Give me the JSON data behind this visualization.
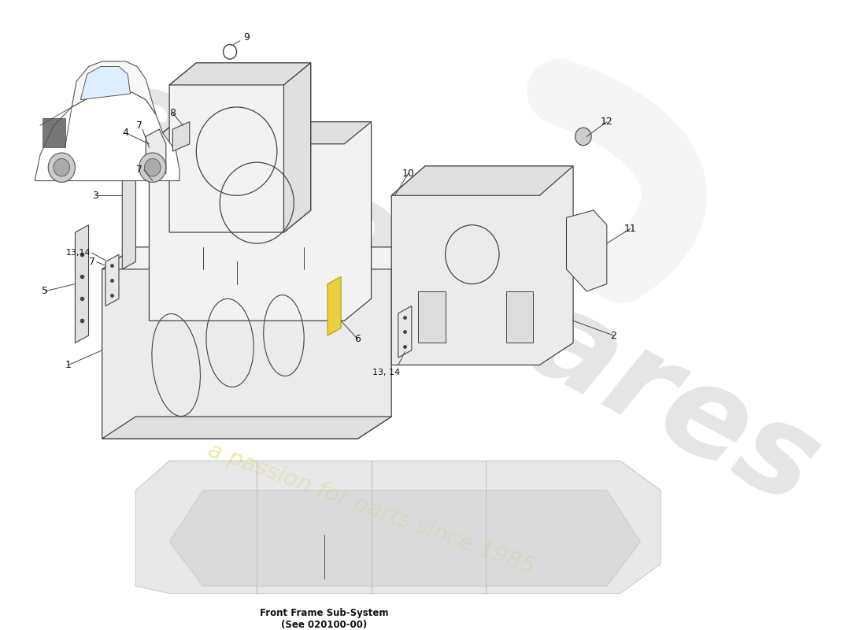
{
  "background_color": "#ffffff",
  "watermark_color1": "#e5e5e5",
  "watermark_color2": "#f0eca0",
  "label_color": "#1a1a1a",
  "line_color": "#444444",
  "part_fill": "#f2f2f2",
  "part_fill_dark": "#e0e0e0",
  "part_fill_mid": "#ebebeb",
  "footnote": "Front Frame Sub-System\n(See 020100-00)",
  "figsize": [
    11.0,
    8.0
  ],
  "dpi": 100
}
